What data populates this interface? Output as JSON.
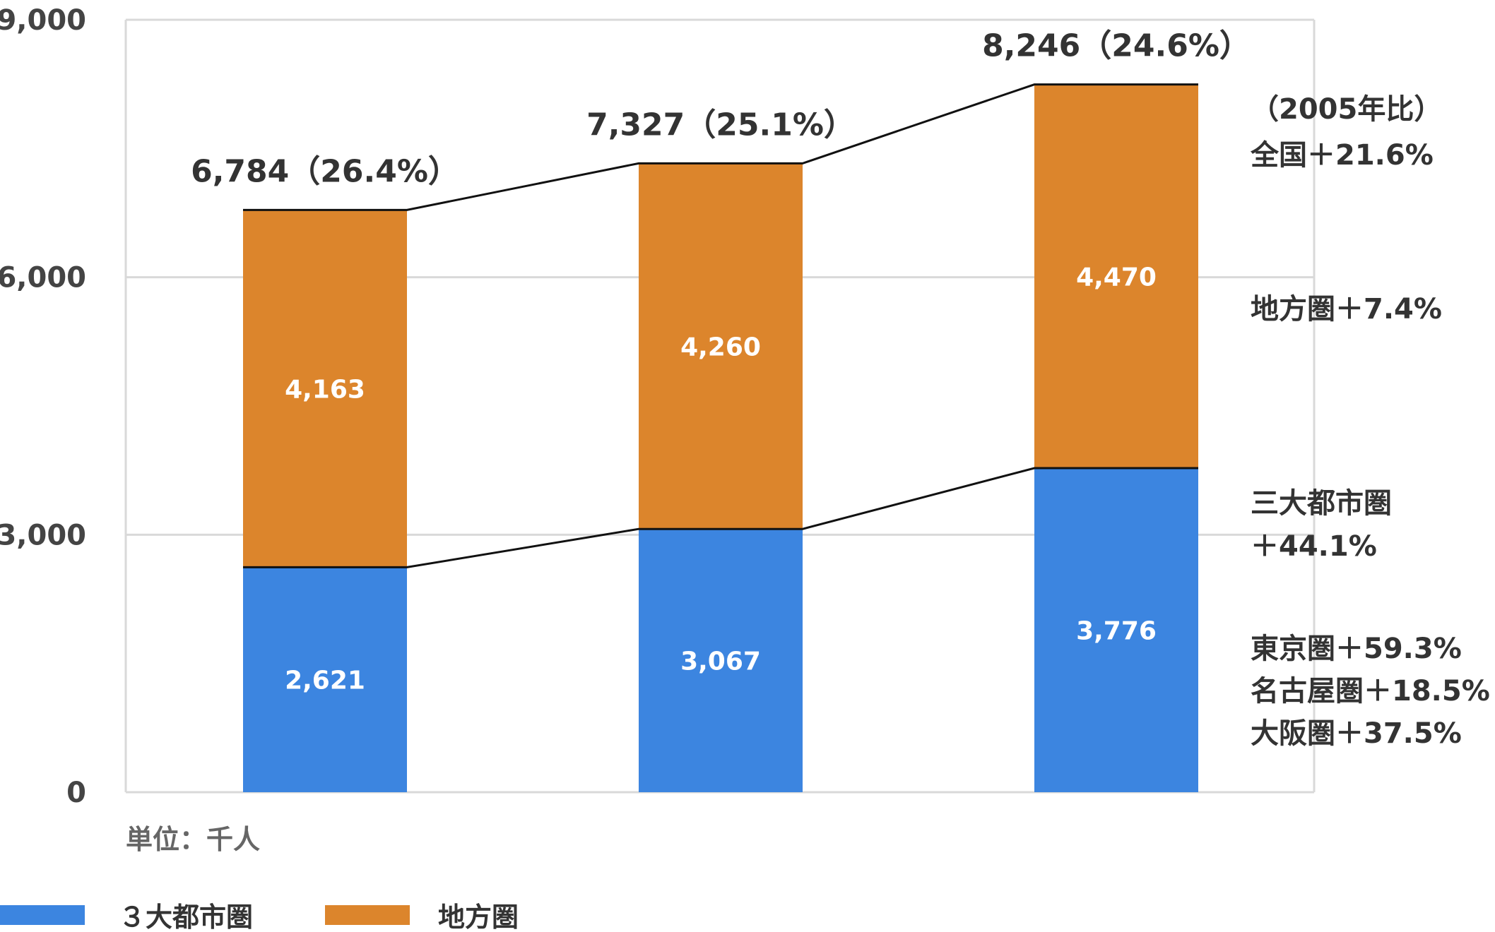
{
  "chart_data": {
    "type": "bar",
    "stacked": true,
    "categories": [
      "",
      "",
      ""
    ],
    "series": [
      {
        "name": "３大都市圏",
        "values": [
          2621,
          3067,
          3776
        ],
        "color": "#3c85e0"
      },
      {
        "name": "地方圏",
        "values": [
          4163,
          4260,
          4470
        ],
        "color": "#dc852c"
      }
    ],
    "segment_labels": [
      [
        "2,621",
        "3,067",
        "3,776"
      ],
      [
        "4,163",
        "4,260",
        "4,470"
      ]
    ],
    "totals": [
      6784,
      7327,
      8246
    ],
    "total_labels": [
      "6,784（26.4%）",
      "7,327（25.1%）",
      "8,246（24.6%）"
    ],
    "ylim": [
      0,
      9000
    ],
    "yticks": [
      0,
      3000,
      6000,
      9000
    ],
    "ytick_labels": [
      "0",
      "3,000",
      "6,000",
      "9,000"
    ],
    "grid": true,
    "unit_label": "単位：千人",
    "legend": {
      "position": "bottom-left"
    },
    "annotations": {
      "header": "（2005年比）",
      "national": "全国＋21.6%",
      "rural": "地方圏＋7.4%",
      "metro_line1": "三大都市圏",
      "metro_line2": "＋44.1%",
      "tokyo": "東京圏＋59.3%",
      "nagoya": "名古屋圏＋18.5%",
      "osaka": "大阪圏＋37.5%"
    },
    "colors": {
      "grid": "#d9d9d9",
      "connector": "#111111"
    }
  }
}
